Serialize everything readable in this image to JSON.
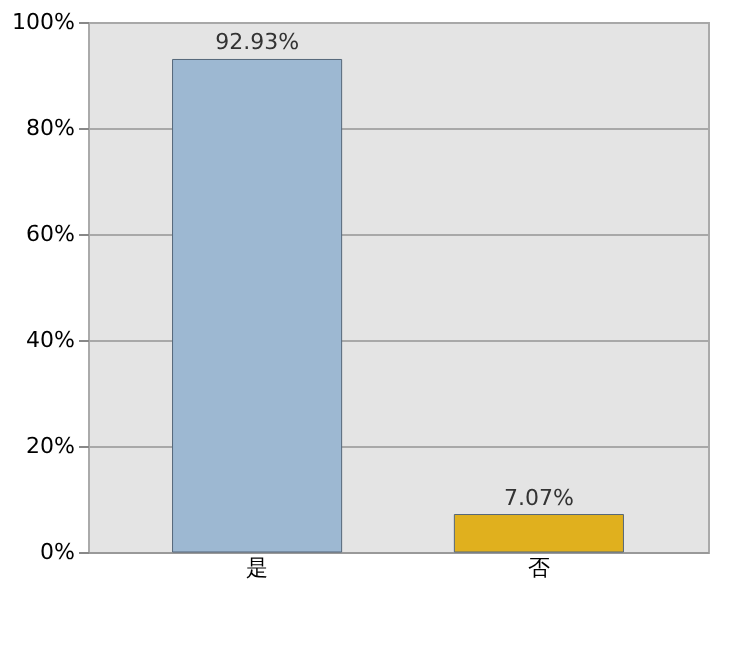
{
  "chart_data": {
    "type": "bar",
    "categories": [
      "是",
      "否"
    ],
    "values": [
      92.93,
      7.07
    ],
    "colors": [
      "#9db8d2",
      "#e0b01e"
    ],
    "value_labels": [
      "92.93%",
      "7.07%"
    ],
    "ylim": [
      0,
      100
    ],
    "yticks": [
      {
        "value": 0,
        "label": "0%"
      },
      {
        "value": 20,
        "label": "20%"
      },
      {
        "value": 40,
        "label": "40%"
      },
      {
        "value": 60,
        "label": "60%"
      },
      {
        "value": 80,
        "label": "80%"
      },
      {
        "value": 100,
        "label": "100%"
      }
    ],
    "grid": "y"
  }
}
